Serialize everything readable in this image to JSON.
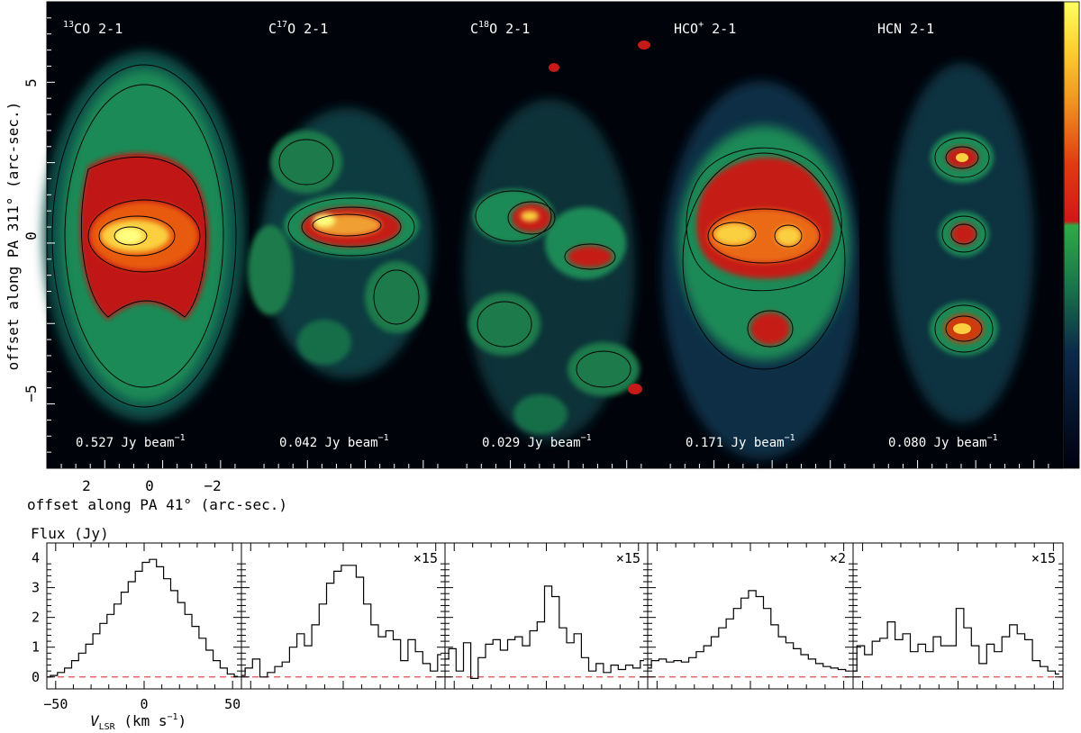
{
  "maps": {
    "ylabel": "offset along PA 311° (arc-sec.)",
    "xlabel": "offset along PA 41° (arc-sec.)",
    "yticks": [
      "5",
      "0",
      "−5"
    ],
    "xticks": [
      "2",
      "0",
      "−2"
    ],
    "panels": [
      {
        "sup": "13",
        "mol": "CO 2-1",
        "peak": "0.527 Jy beam",
        "exp": "−1"
      },
      {
        "sup": "17",
        "mol": "O 2-1",
        "pre": "C",
        "peak": "0.042 Jy beam",
        "exp": "−1"
      },
      {
        "sup": "18",
        "mol": "O 2-1",
        "pre": "C",
        "peak": "0.029 Jy beam",
        "exp": "−1"
      },
      {
        "sup": "+",
        "mol": " 2-1",
        "pre": "HCO",
        "peak": "0.171 Jy beam",
        "exp": "−1"
      },
      {
        "sup": "",
        "mol": "HCN 2-1",
        "pre": "",
        "peak": "0.080 Jy beam",
        "exp": "−1"
      }
    ]
  },
  "chart_data": {
    "type": "line",
    "title": "",
    "ylabel": "Flux (Jy)",
    "xlabel_main": "V",
    "xlabel_sub": "LSR",
    "xlabel_rest": " (km s",
    "xlabel_exp": "−1",
    "xlabel_end": ")",
    "xlim": [
      -55,
      55
    ],
    "ylim": [
      -0.4,
      4.5
    ],
    "xticks": [
      "−50",
      "0",
      "50"
    ],
    "yticks": [
      "0",
      "1",
      "2",
      "3",
      "4"
    ],
    "baseline_color": "#e64a4a",
    "series": [
      {
        "name": "",
        "scale": "",
        "x": [
          -55,
          -51,
          -47,
          -43,
          -39,
          -35,
          -31,
          -27,
          -23,
          -19,
          -15,
          -11,
          -7,
          -3,
          1,
          5,
          9,
          13,
          17,
          21,
          25,
          29,
          33,
          37,
          41,
          45,
          49,
          53
        ],
        "values": [
          0.0,
          0.05,
          0.15,
          0.3,
          0.55,
          0.8,
          1.1,
          1.45,
          1.8,
          2.1,
          2.45,
          2.85,
          3.2,
          3.55,
          3.85,
          3.95,
          3.7,
          3.3,
          2.9,
          2.5,
          2.1,
          1.7,
          1.3,
          0.9,
          0.55,
          0.3,
          0.1,
          0.02
        ]
      },
      {
        "name": "",
        "scale": "×15",
        "x": [
          -55,
          -51,
          -47,
          -43,
          -39,
          -35,
          -31,
          -27,
          -23,
          -19,
          -15,
          -11,
          -7,
          -3,
          1,
          5,
          9,
          13,
          17,
          21,
          25,
          29,
          33,
          37,
          41,
          45,
          49,
          53
        ],
        "values": [
          0.05,
          0.3,
          0.6,
          0.0,
          0.15,
          0.35,
          0.5,
          1.0,
          1.45,
          1.05,
          1.75,
          2.45,
          3.15,
          3.55,
          3.75,
          3.75,
          3.35,
          2.45,
          1.75,
          1.35,
          1.55,
          1.25,
          0.55,
          1.25,
          0.85,
          0.45,
          0.2,
          0.75
        ]
      },
      {
        "name": "",
        "scale": "×15",
        "x": [
          -55,
          -51,
          -47,
          -43,
          -39,
          -35,
          -31,
          -27,
          -23,
          -19,
          -15,
          -11,
          -7,
          -3,
          1,
          5,
          9,
          13,
          17,
          21,
          25,
          29,
          33,
          37,
          41,
          45,
          49,
          53
        ],
        "values": [
          0.6,
          0.95,
          0.2,
          1.15,
          -0.05,
          0.65,
          1.1,
          1.25,
          0.9,
          1.25,
          1.35,
          1.05,
          1.55,
          1.85,
          3.05,
          2.7,
          1.65,
          1.15,
          1.45,
          0.65,
          0.2,
          0.45,
          0.15,
          0.4,
          0.25,
          0.4,
          0.3,
          0.55
        ]
      },
      {
        "name": "",
        "scale": "×2",
        "x": [
          -55,
          -51,
          -47,
          -43,
          -39,
          -35,
          -31,
          -27,
          -23,
          -19,
          -15,
          -11,
          -7,
          -3,
          1,
          5,
          9,
          13,
          17,
          21,
          25,
          29,
          33,
          37,
          41,
          45,
          49,
          53
        ],
        "values": [
          0.3,
          0.55,
          0.6,
          0.5,
          0.55,
          0.5,
          0.65,
          0.85,
          1.05,
          1.35,
          1.65,
          1.95,
          2.3,
          2.65,
          2.9,
          2.7,
          2.3,
          1.75,
          1.35,
          1.15,
          0.95,
          0.75,
          0.6,
          0.45,
          0.35,
          0.3,
          0.25,
          0.2
        ]
      },
      {
        "name": "",
        "scale": "×15",
        "x": [
          -55,
          -51,
          -47,
          -43,
          -39,
          -35,
          -31,
          -27,
          -23,
          -19,
          -15,
          -11,
          -7,
          -3,
          1,
          5,
          9,
          13,
          17,
          21,
          25,
          29,
          33,
          37,
          41,
          45,
          49,
          53
        ],
        "values": [
          0.2,
          1.05,
          0.75,
          1.2,
          1.3,
          1.85,
          1.25,
          1.45,
          0.85,
          1.1,
          0.85,
          1.35,
          1.05,
          1.05,
          2.3,
          1.65,
          1.05,
          0.45,
          1.1,
          0.85,
          1.35,
          1.75,
          1.45,
          1.25,
          0.55,
          0.35,
          0.2,
          0.1
        ]
      }
    ]
  }
}
